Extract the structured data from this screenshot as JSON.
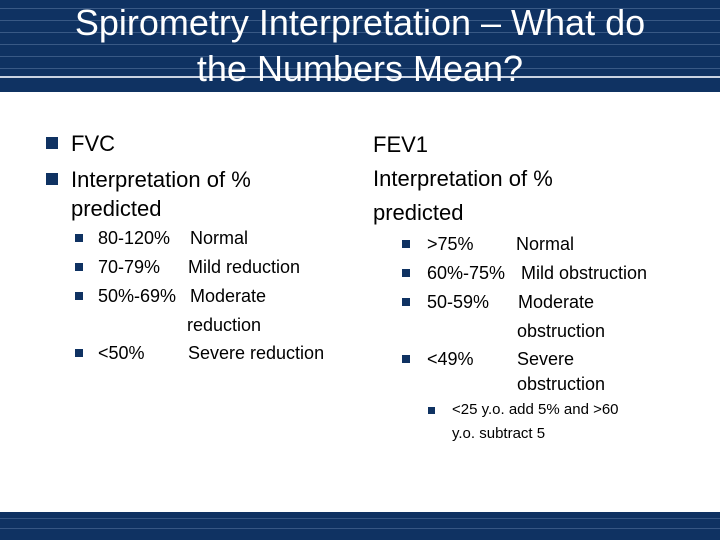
{
  "slide": {
    "title_line1": "Spirometry Interpretation – What do",
    "title_line2": "the Numbers Mean?",
    "accent_color": "#0f3262"
  },
  "left": {
    "items": [
      "FVC",
      "Interpretation of %",
      "predicted"
    ],
    "rows": [
      {
        "range": "80-120%",
        "label": "Normal"
      },
      {
        "range": "70-79%",
        "label": "Mild reduction"
      },
      {
        "range": "50%-69%",
        "label": "Moderate"
      },
      {
        "range": "",
        "label": "reduction"
      },
      {
        "range": "<50%",
        "label": "Severe reduction"
      }
    ]
  },
  "right": {
    "heading": [
      "FEV1",
      "Interpretation of %",
      "predicted"
    ],
    "rows": [
      {
        "range": ">75%",
        "label": "Normal"
      },
      {
        "range": "60%-75%",
        "label": "Mild obstruction"
      },
      {
        "range": "50-59%",
        "label": "Moderate"
      },
      {
        "range": "",
        "label": "obstruction"
      },
      {
        "range": "<49%",
        "label": "Severe"
      },
      {
        "range": "",
        "label": "obstruction"
      }
    ],
    "note_line1": "<25 y.o. add 5% and >60",
    "note_line2": "y.o. subtract 5"
  }
}
